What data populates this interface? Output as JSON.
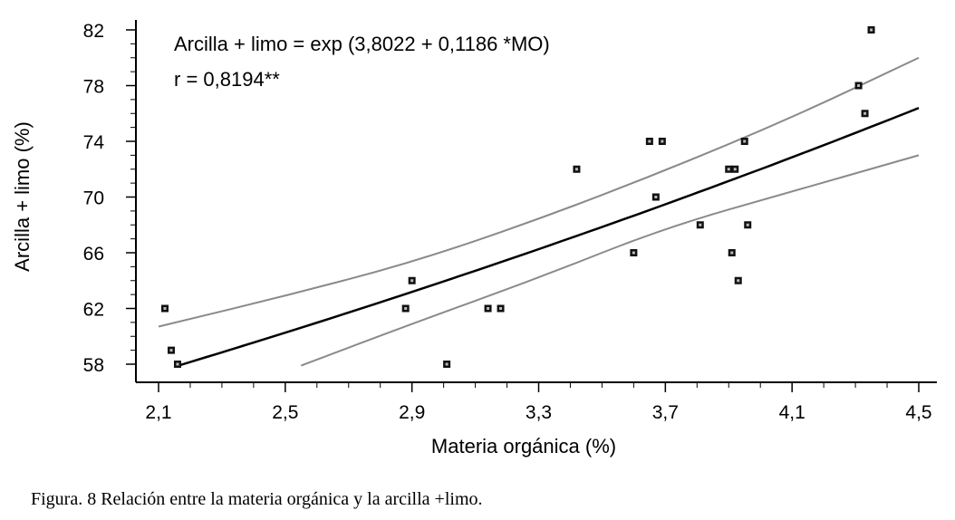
{
  "chart_data": {
    "type": "scatter",
    "xlabel": "Materia orgánica (%)",
    "ylabel": "Arcilla + limo (%)",
    "xlim": [
      2.1,
      4.5
    ],
    "ylim": [
      58,
      82
    ],
    "x_ticks": [
      "2,1",
      "2,5",
      "2,9",
      "3,3",
      "3,7",
      "4,1",
      "4,5"
    ],
    "x_tick_values": [
      2.1,
      2.5,
      2.9,
      3.3,
      3.7,
      4.1,
      4.5
    ],
    "y_ticks": [
      "58",
      "62",
      "66",
      "70",
      "74",
      "78",
      "82"
    ],
    "y_tick_values": [
      58,
      62,
      66,
      70,
      74,
      78,
      82
    ],
    "grid": false,
    "annotations": [
      "Arcilla + limo = exp (3,8022 + 0,1186 *MO)",
      "r = 0,8194**"
    ],
    "points": [
      {
        "x": 2.12,
        "y": 62
      },
      {
        "x": 2.14,
        "y": 59
      },
      {
        "x": 2.16,
        "y": 58
      },
      {
        "x": 2.9,
        "y": 64
      },
      {
        "x": 2.88,
        "y": 62
      },
      {
        "x": 3.01,
        "y": 58
      },
      {
        "x": 3.14,
        "y": 62
      },
      {
        "x": 3.18,
        "y": 62
      },
      {
        "x": 3.42,
        "y": 72
      },
      {
        "x": 3.6,
        "y": 66
      },
      {
        "x": 3.65,
        "y": 74
      },
      {
        "x": 3.67,
        "y": 70
      },
      {
        "x": 3.69,
        "y": 74
      },
      {
        "x": 3.81,
        "y": 68
      },
      {
        "x": 3.9,
        "y": 72
      },
      {
        "x": 3.92,
        "y": 72
      },
      {
        "x": 3.91,
        "y": 66
      },
      {
        "x": 3.93,
        "y": 64
      },
      {
        "x": 3.95,
        "y": 74
      },
      {
        "x": 3.96,
        "y": 68
      },
      {
        "x": 4.31,
        "y": 78
      },
      {
        "x": 4.33,
        "y": 76
      },
      {
        "x": 4.35,
        "y": 82
      }
    ],
    "fit": {
      "name": "Arcilla + limo = exp (3,8022 + 0,1186 *MO)",
      "intercept": 3.8022,
      "slope": 0.1186,
      "x_range": [
        2.17,
        4.5
      ]
    },
    "band_upper": {
      "x": [
        2.1,
        2.5,
        2.9,
        3.3,
        3.7,
        4.1,
        4.5
      ],
      "y": [
        60.7,
        62.9,
        65.3,
        68.4,
        71.9,
        75.7,
        80.0
      ]
    },
    "band_lower": {
      "x": [
        2.55,
        2.9,
        3.3,
        3.7,
        4.1,
        4.5
      ],
      "y": [
        57.9,
        60.9,
        64.2,
        67.8,
        70.4,
        73.0
      ]
    }
  },
  "caption": "Figura.  8  Relación entre la materia orgánica y la arcilla +limo."
}
